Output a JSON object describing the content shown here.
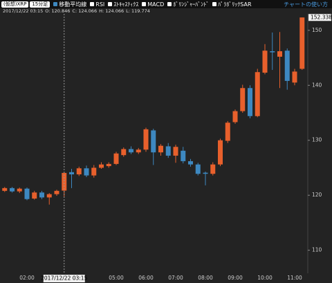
{
  "toolbar": {
    "symbol": "(仮想)XRP",
    "interval": "15分足",
    "indicators": [
      {
        "label": "移動平均線",
        "checked": true
      },
      {
        "label": "RSI",
        "checked": false
      },
      {
        "label": "ｽﾄｷｬｽﾃｨｸｽ",
        "checked": false
      },
      {
        "label": "MACD",
        "checked": false
      },
      {
        "label": "ﾎﾞﾘﾝｼﾞｬｰﾊﾞﾝﾄﾞ",
        "checked": false
      },
      {
        "label": "ﾊﾟﾗﾎﾞﾘｯｸSAR",
        "checked": false
      }
    ],
    "help_link": "チャートの使い方"
  },
  "info": [
    "2017/12/22 03:15",
    "O: 120.846",
    "C: 124.066",
    "H: 124.066",
    "L: 119.774"
  ],
  "chart_data": {
    "type": "candlestick",
    "up_color": "#e8602c",
    "down_color": "#3d88c0",
    "categories": [
      null,
      null,
      null,
      "02:00",
      null,
      null,
      null,
      null,
      null,
      null,
      null,
      null,
      null,
      null,
      null,
      "05:00",
      null,
      null,
      null,
      "06:00",
      null,
      null,
      null,
      "07:00",
      null,
      null,
      null,
      "08:00",
      null,
      null,
      null,
      "09:00",
      null,
      null,
      null,
      "10:00",
      null,
      null,
      null,
      "11:00",
      null
    ],
    "open": [
      120.8,
      121.3,
      120.7,
      121.2,
      119.4,
      120.5,
      119.6,
      120.2,
      120.846,
      124.2,
      123.8,
      124.9,
      123.6,
      125.0,
      125.3,
      125.7,
      127.3,
      128.4,
      127.8,
      128.3,
      131.8,
      127.8,
      128.9,
      127.2,
      128.1,
      126.2,
      125.6,
      124.1,
      123.9,
      125.6,
      129.9,
      133.3,
      135.3,
      139.5,
      134.4,
      142.3,
      146.2,
      145.2,
      146.3,
      140.5,
      143.0
    ],
    "high": [
      121.5,
      121.5,
      121.4,
      121.4,
      120.8,
      120.8,
      120.4,
      121.0,
      124.066,
      124.8,
      125.2,
      125.4,
      125.5,
      126.0,
      126.0,
      127.9,
      128.7,
      128.9,
      128.6,
      132.3,
      132.1,
      129.3,
      129.5,
      129.2,
      128.8,
      126.6,
      125.9,
      124.3,
      126.0,
      130.3,
      133.5,
      135.6,
      140.1,
      140.0,
      143.0,
      147.5,
      149.6,
      149.7,
      146.7,
      143.0,
      152.338
    ],
    "low": [
      120.6,
      120.5,
      120.4,
      119.1,
      119.2,
      119.3,
      118.3,
      119.9,
      119.774,
      121.3,
      123.5,
      123.3,
      123.2,
      124.8,
      125.0,
      125.5,
      127.0,
      127.5,
      127.5,
      127.9,
      125.5,
      127.2,
      126.8,
      125.9,
      125.8,
      125.2,
      123.6,
      121.8,
      123.6,
      125.3,
      129.5,
      133.0,
      135.0,
      134.0,
      134.2,
      142.0,
      142.8,
      139.5,
      139.2,
      140.0,
      142.8
    ],
    "close": [
      121.3,
      120.7,
      121.2,
      119.3,
      120.5,
      119.6,
      120.2,
      120.8,
      124.066,
      123.8,
      124.9,
      123.6,
      125.0,
      125.6,
      125.7,
      127.6,
      128.4,
      127.8,
      128.3,
      132.0,
      127.8,
      129.0,
      127.2,
      128.8,
      126.2,
      125.6,
      123.9,
      123.9,
      125.6,
      130.0,
      133.2,
      135.3,
      139.5,
      134.4,
      142.4,
      146.3,
      146.0,
      146.2,
      140.8,
      142.5,
      152.338
    ],
    "crosshair_index": 8,
    "ylim": [
      105.8,
      153.0
    ],
    "yticks": [
      110,
      120,
      130,
      140,
      150
    ]
  }
}
